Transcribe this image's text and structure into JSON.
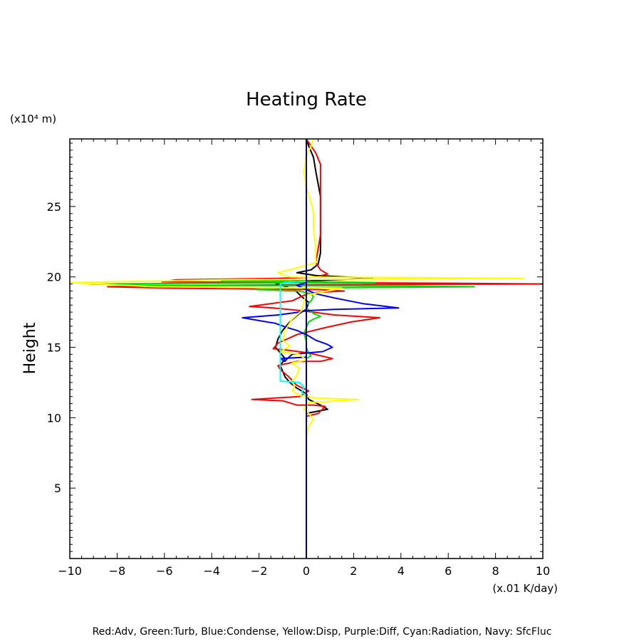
{
  "chart_data": {
    "type": "line",
    "title": "Heating Rate",
    "ylabel": "Height",
    "y_unit": "(x10⁴ m)",
    "x_unit": "(x.01 K/day)",
    "caption": "Red:Adv, Green:Turb, Blue:Condense, Yellow:Disp, Purple:Diff, Cyan:Radiation, Navy: SfcFluc",
    "xlim": [
      -10,
      10
    ],
    "ylim": [
      0,
      29.8
    ],
    "x_ticks": [
      "−10",
      "−8",
      "−6",
      "−4",
      "−2",
      "0",
      "2",
      "4",
      "6",
      "8",
      "10"
    ],
    "y_ticks": [
      "5",
      "10",
      "15",
      "20",
      "25"
    ],
    "grid": false,
    "series": [
      {
        "color": "#000000",
        "points": [
          [
            0,
            10.3
          ],
          [
            0.3,
            10.4
          ],
          [
            0.9,
            10.6
          ],
          [
            0.6,
            10.9
          ],
          [
            0.1,
            11.3
          ],
          [
            0,
            11.7
          ],
          [
            -0.4,
            12.1
          ],
          [
            -0.7,
            12.5
          ],
          [
            -0.9,
            12.9
          ],
          [
            -1.0,
            13.3
          ],
          [
            -1.1,
            13.7
          ],
          [
            -0.9,
            14.2
          ],
          [
            -1.1,
            14.6
          ],
          [
            -1.3,
            15.0
          ],
          [
            -1.2,
            15.6
          ],
          [
            -1.0,
            16.2
          ],
          [
            -0.7,
            16.8
          ],
          [
            -0.3,
            17.4
          ],
          [
            0,
            17.7
          ],
          [
            0.1,
            18.2
          ],
          [
            -0.2,
            18.6
          ],
          [
            -0.5,
            19.1
          ],
          [
            -1.4,
            19.6
          ],
          [
            0.5,
            19.75
          ],
          [
            2.8,
            19.9
          ],
          [
            0.4,
            20.1
          ],
          [
            -0.4,
            20.3
          ],
          [
            0.2,
            20.5
          ],
          [
            0.5,
            20.9
          ],
          [
            0.6,
            21.7
          ],
          [
            0.6,
            22.7
          ],
          [
            0.6,
            23.7
          ],
          [
            0.6,
            24.7
          ],
          [
            0.6,
            25.7
          ],
          [
            0.5,
            26.6
          ],
          [
            0.4,
            27.5
          ],
          [
            0.3,
            28.5
          ],
          [
            0.1,
            29.3
          ],
          [
            0,
            29.8
          ]
        ]
      },
      {
        "color": "#ff0000",
        "points": [
          [
            0,
            10.1
          ],
          [
            0.5,
            10.3
          ],
          [
            0.8,
            10.8
          ],
          [
            0.3,
            10.9
          ],
          [
            -0.4,
            10.9
          ],
          [
            -1.0,
            11.2
          ],
          [
            -2.3,
            11.3
          ],
          [
            -0.3,
            11.5
          ],
          [
            0.1,
            11.9
          ],
          [
            -0.4,
            12.3
          ],
          [
            -0.8,
            13.0
          ],
          [
            -1.1,
            13.4
          ],
          [
            -1.2,
            13.7
          ],
          [
            -0.4,
            14.0
          ],
          [
            0.6,
            14.0
          ],
          [
            1.1,
            14.2
          ],
          [
            0.1,
            14.6
          ],
          [
            -0.8,
            14.8
          ],
          [
            -1.4,
            14.9
          ],
          [
            -1.2,
            15.3
          ],
          [
            -0.4,
            15.9
          ],
          [
            0.8,
            16.4
          ],
          [
            1.9,
            16.8
          ],
          [
            3.1,
            17.1
          ],
          [
            1.2,
            17.3
          ],
          [
            -0.2,
            17.6
          ],
          [
            -1.4,
            17.8
          ],
          [
            -2.4,
            17.9
          ],
          [
            -0.6,
            18.3
          ],
          [
            -0.1,
            18.7
          ],
          [
            0.5,
            18.9
          ],
          [
            1.6,
            19.0
          ],
          [
            0.5,
            19.1
          ],
          [
            -5.7,
            19.2
          ],
          [
            -8.4,
            19.3
          ],
          [
            -4.0,
            19.4
          ],
          [
            0.8,
            19.45
          ],
          [
            10,
            19.5
          ],
          [
            6.2,
            19.55
          ],
          [
            -6.1,
            19.65
          ],
          [
            -5.5,
            19.8
          ],
          [
            -1.2,
            19.9
          ],
          [
            0.4,
            20.0
          ],
          [
            0.9,
            20.2
          ],
          [
            0.6,
            20.5
          ],
          [
            0.4,
            21.0
          ],
          [
            0.5,
            22.0
          ],
          [
            0.6,
            23.0
          ],
          [
            0.6,
            24.0
          ],
          [
            0.6,
            25.0
          ],
          [
            0.6,
            26.0
          ],
          [
            0.6,
            27.0
          ],
          [
            0.6,
            28.0
          ],
          [
            0.4,
            28.8
          ],
          [
            0.2,
            29.3
          ],
          [
            0,
            29.8
          ]
        ]
      },
      {
        "color": "#00dd00",
        "points": [
          [
            0,
            14.2
          ],
          [
            0.2,
            14.4
          ],
          [
            0.1,
            14.6
          ],
          [
            0,
            15.0
          ],
          [
            0,
            15.4
          ],
          [
            -0.1,
            16.0
          ],
          [
            0,
            16.4
          ],
          [
            0.1,
            16.8
          ],
          [
            0.3,
            17.0
          ],
          [
            0.6,
            17.2
          ],
          [
            0.3,
            17.4
          ],
          [
            0,
            17.8
          ],
          [
            0,
            18.0
          ],
          [
            0.2,
            18.3
          ],
          [
            0.3,
            18.6
          ],
          [
            0.2,
            18.8
          ],
          [
            -0.3,
            19.0
          ],
          [
            -2.1,
            19.1
          ],
          [
            -1.3,
            19.2
          ],
          [
            7.1,
            19.3
          ],
          [
            4.5,
            19.35
          ],
          [
            -6.6,
            19.4
          ],
          [
            -9.1,
            19.5
          ],
          [
            -4.0,
            19.55
          ],
          [
            2.9,
            19.6
          ],
          [
            0.5,
            19.65
          ],
          [
            -3.6,
            19.7
          ],
          [
            0.0,
            19.8
          ]
        ]
      },
      {
        "color": "#0000ff",
        "points": [
          [
            0,
            14.3
          ],
          [
            -1.1,
            14.2
          ],
          [
            -0.9,
            14.0
          ],
          [
            -0.8,
            14.2
          ],
          [
            -0.6,
            14.5
          ],
          [
            0.7,
            14.7
          ],
          [
            1.1,
            15.0
          ],
          [
            0.9,
            15.2
          ],
          [
            0.4,
            15.5
          ],
          [
            0,
            15.9
          ],
          [
            -0.4,
            16.2
          ],
          [
            -0.8,
            16.4
          ],
          [
            -1.3,
            16.7
          ],
          [
            -2.7,
            17.1
          ],
          [
            -1.2,
            17.3
          ],
          [
            -0.3,
            17.5
          ],
          [
            0,
            17.6
          ],
          [
            1.2,
            17.7
          ],
          [
            3.9,
            17.8
          ],
          [
            2.4,
            18.1
          ],
          [
            1.2,
            18.5
          ],
          [
            0.4,
            18.8
          ],
          [
            0,
            19.1
          ],
          [
            -0.4,
            19.4
          ],
          [
            0,
            19.6
          ]
        ]
      },
      {
        "color": "#ffff00",
        "points": [
          [
            0,
            8.6
          ],
          [
            0.1,
            9.4
          ],
          [
            0.3,
            9.9
          ],
          [
            0.1,
            10.3
          ],
          [
            -0.1,
            10.6
          ],
          [
            0.1,
            11.1
          ],
          [
            0.4,
            11.1
          ],
          [
            2.2,
            11.3
          ],
          [
            0.4,
            11.4
          ],
          [
            -0.3,
            11.6
          ],
          [
            -0.6,
            11.9
          ],
          [
            -0.5,
            12.2
          ],
          [
            -0.6,
            12.6
          ],
          [
            -0.4,
            13.0
          ],
          [
            -0.3,
            13.5
          ],
          [
            -0.6,
            13.9
          ],
          [
            0,
            14.1
          ],
          [
            -0.3,
            14.5
          ],
          [
            -1.1,
            14.7
          ],
          [
            -0.7,
            15.1
          ],
          [
            -1.0,
            15.5
          ],
          [
            -0.9,
            16.2
          ],
          [
            -0.6,
            17.0
          ],
          [
            -0.2,
            17.6
          ],
          [
            -0.1,
            18.3
          ],
          [
            0,
            18.7
          ],
          [
            1.5,
            19.2
          ],
          [
            -6.4,
            19.3
          ],
          [
            -10,
            19.6
          ],
          [
            -3.6,
            19.8
          ],
          [
            2.9,
            19.85
          ],
          [
            9.2,
            19.9
          ],
          [
            -0.7,
            20.0
          ],
          [
            -1.2,
            20.3
          ],
          [
            -0.5,
            20.6
          ],
          [
            0.4,
            21.0
          ],
          [
            0.4,
            22.0
          ],
          [
            0.3,
            23.5
          ],
          [
            0.3,
            24.5
          ],
          [
            0.2,
            25.3
          ],
          [
            0,
            26.3
          ],
          [
            -0.1,
            27.5
          ],
          [
            0,
            28.6
          ],
          [
            0.2,
            29.3
          ],
          [
            0.3,
            29.8
          ]
        ]
      },
      {
        "color": "#00ffff",
        "points": [
          [
            0,
            11.6
          ],
          [
            -0.2,
            11.8
          ],
          [
            -0.1,
            12.2
          ],
          [
            -0.3,
            12.5
          ],
          [
            -1.1,
            12.6
          ],
          [
            -1.1,
            13.5
          ],
          [
            -1.1,
            14.5
          ],
          [
            -1.1,
            15.5
          ],
          [
            -1.1,
            16.5
          ],
          [
            -1.1,
            17.5
          ],
          [
            -1.1,
            18.5
          ],
          [
            -1.1,
            19.5
          ],
          [
            -0.9,
            19.6
          ],
          [
            0,
            19.7
          ]
        ]
      },
      {
        "color": "#000080",
        "points": [
          [
            0,
            0
          ],
          [
            0,
            29.8
          ]
        ]
      }
    ]
  }
}
